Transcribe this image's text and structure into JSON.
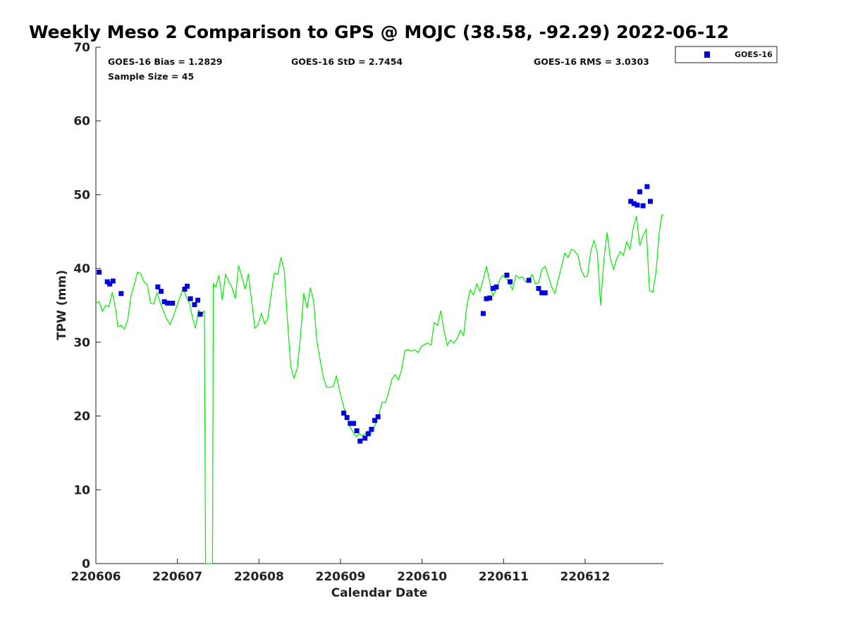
{
  "chart_data": {
    "type": "scatter",
    "title": "Weekly Meso 2 Comparison to GPS @ MOJC (38.58, -92.29) 2022-06-12",
    "xlabel": "Calendar Date",
    "ylabel": "TPW (mm)",
    "x_tick_labels": [
      "220606",
      "220607",
      "220608",
      "220609",
      "220610",
      "220611",
      "220612"
    ],
    "xlim": [
      0,
      6.96
    ],
    "ylim": [
      0,
      70
    ],
    "y_ticks": [
      0,
      10,
      20,
      30,
      40,
      50,
      60,
      70
    ],
    "grid": false,
    "legend_position": "top-right",
    "stats": {
      "bias": "GOES-16 Bias = 1.2829",
      "std": "GOES-16 StD = 2.7454",
      "rms": "GOES-16 RMS = 3.0303",
      "sample": "Sample Size = 45"
    },
    "series": [
      {
        "name": "GOES-16",
        "kind": "scatter",
        "color": "#0000dd",
        "points": [
          [
            0.04,
            39.5
          ],
          [
            0.14,
            38.2
          ],
          [
            0.17,
            37.9
          ],
          [
            0.21,
            38.3
          ],
          [
            0.31,
            36.6
          ],
          [
            0.76,
            37.5
          ],
          [
            0.8,
            36.9
          ],
          [
            0.84,
            35.5
          ],
          [
            0.88,
            35.3
          ],
          [
            0.94,
            35.3
          ],
          [
            1.09,
            37.2
          ],
          [
            1.12,
            37.6
          ],
          [
            1.16,
            35.9
          ],
          [
            1.21,
            35.1
          ],
          [
            1.25,
            35.7
          ],
          [
            1.28,
            33.8
          ],
          [
            3.04,
            20.4
          ],
          [
            3.08,
            19.8
          ],
          [
            3.12,
            19.0
          ],
          [
            3.16,
            19.0
          ],
          [
            3.2,
            18.0
          ],
          [
            3.24,
            16.6
          ],
          [
            3.3,
            17.0
          ],
          [
            3.34,
            17.6
          ],
          [
            3.38,
            18.2
          ],
          [
            3.42,
            19.4
          ],
          [
            3.46,
            19.9
          ],
          [
            4.75,
            33.9
          ],
          [
            4.79,
            35.9
          ],
          [
            4.83,
            36.0
          ],
          [
            4.87,
            37.3
          ],
          [
            4.91,
            37.5
          ],
          [
            5.04,
            39.1
          ],
          [
            5.08,
            38.2
          ],
          [
            5.31,
            38.4
          ],
          [
            5.43,
            37.3
          ],
          [
            5.47,
            36.7
          ],
          [
            5.51,
            36.7
          ],
          [
            6.56,
            49.1
          ],
          [
            6.6,
            48.8
          ],
          [
            6.64,
            48.6
          ],
          [
            6.67,
            50.4
          ],
          [
            6.71,
            48.5
          ],
          [
            6.76,
            51.1
          ],
          [
            6.8,
            49.1
          ]
        ]
      },
      {
        "kind": "line",
        "color": "#00ee00",
        "points": [
          [
            0.0,
            35.3
          ],
          [
            0.04,
            35.5
          ],
          [
            0.08,
            34.2
          ],
          [
            0.12,
            35.0
          ],
          [
            0.16,
            34.8
          ],
          [
            0.2,
            36.8
          ],
          [
            0.24,
            34.6
          ],
          [
            0.27,
            32.1
          ],
          [
            0.31,
            32.3
          ],
          [
            0.35,
            31.8
          ],
          [
            0.39,
            33.0
          ],
          [
            0.43,
            36.2
          ],
          [
            0.47,
            37.8
          ],
          [
            0.51,
            39.5
          ],
          [
            0.55,
            39.3
          ],
          [
            0.59,
            38.2
          ],
          [
            0.63,
            37.8
          ],
          [
            0.67,
            35.3
          ],
          [
            0.71,
            35.2
          ],
          [
            0.75,
            36.7
          ],
          [
            0.79,
            35.3
          ],
          [
            0.83,
            34.2
          ],
          [
            0.87,
            33.1
          ],
          [
            0.91,
            32.4
          ],
          [
            0.95,
            33.5
          ],
          [
            0.99,
            34.8
          ],
          [
            1.03,
            36.1
          ],
          [
            1.07,
            37.3
          ],
          [
            1.11,
            36.1
          ],
          [
            1.15,
            35.2
          ],
          [
            1.19,
            33.1
          ],
          [
            1.22,
            31.9
          ],
          [
            1.26,
            34.4
          ],
          [
            1.3,
            33.7
          ],
          [
            1.33,
            34.3
          ],
          [
            1.345,
            0.0
          ],
          [
            1.4,
            0.0
          ],
          [
            1.43,
            0.0
          ],
          [
            1.44,
            37.9
          ],
          [
            1.47,
            37.5
          ],
          [
            1.51,
            39.1
          ],
          [
            1.55,
            35.7
          ],
          [
            1.59,
            39.2
          ],
          [
            1.63,
            38.2
          ],
          [
            1.67,
            37.4
          ],
          [
            1.71,
            35.9
          ],
          [
            1.75,
            40.4
          ],
          [
            1.79,
            38.9
          ],
          [
            1.83,
            37.2
          ],
          [
            1.87,
            39.3
          ],
          [
            1.91,
            35.6
          ],
          [
            1.95,
            31.9
          ],
          [
            1.99,
            32.4
          ],
          [
            2.03,
            33.9
          ],
          [
            2.07,
            32.5
          ],
          [
            2.11,
            33.2
          ],
          [
            2.15,
            36.6
          ],
          [
            2.19,
            39.4
          ],
          [
            2.23,
            39.2
          ],
          [
            2.27,
            41.5
          ],
          [
            2.31,
            39.8
          ],
          [
            2.35,
            32.9
          ],
          [
            2.39,
            26.7
          ],
          [
            2.43,
            25.1
          ],
          [
            2.47,
            26.5
          ],
          [
            2.51,
            30.8
          ],
          [
            2.55,
            36.7
          ],
          [
            2.59,
            34.6
          ],
          [
            2.63,
            37.4
          ],
          [
            2.67,
            35.6
          ],
          [
            2.71,
            30.2
          ],
          [
            2.75,
            27.6
          ],
          [
            2.79,
            25.2
          ],
          [
            2.83,
            23.9
          ],
          [
            2.87,
            23.9
          ],
          [
            2.91,
            24.0
          ],
          [
            2.95,
            25.4
          ],
          [
            2.99,
            23.4
          ],
          [
            3.03,
            21.6
          ],
          [
            3.07,
            20.0
          ],
          [
            3.11,
            18.7
          ],
          [
            3.15,
            17.9
          ],
          [
            3.19,
            17.2
          ],
          [
            3.23,
            17.6
          ],
          [
            3.27,
            17.3
          ],
          [
            3.31,
            17.7
          ],
          [
            3.35,
            17.3
          ],
          [
            3.39,
            17.8
          ],
          [
            3.43,
            19.0
          ],
          [
            3.47,
            20.1
          ],
          [
            3.51,
            21.9
          ],
          [
            3.55,
            21.8
          ],
          [
            3.59,
            23.2
          ],
          [
            3.63,
            25.0
          ],
          [
            3.67,
            25.6
          ],
          [
            3.71,
            24.9
          ],
          [
            3.75,
            26.3
          ],
          [
            3.79,
            28.9
          ],
          [
            3.83,
            29.0
          ],
          [
            3.87,
            28.8
          ],
          [
            3.91,
            29.0
          ],
          [
            3.95,
            28.6
          ],
          [
            3.99,
            29.4
          ],
          [
            4.03,
            29.7
          ],
          [
            4.07,
            29.9
          ],
          [
            4.11,
            29.6
          ],
          [
            4.15,
            32.7
          ],
          [
            4.19,
            32.3
          ],
          [
            4.23,
            34.3
          ],
          [
            4.27,
            31.5
          ],
          [
            4.31,
            29.6
          ],
          [
            4.35,
            30.3
          ],
          [
            4.39,
            29.9
          ],
          [
            4.43,
            30.5
          ],
          [
            4.47,
            31.6
          ],
          [
            4.51,
            30.9
          ],
          [
            4.55,
            35.0
          ],
          [
            4.59,
            37.1
          ],
          [
            4.63,
            36.4
          ],
          [
            4.67,
            37.9
          ],
          [
            4.71,
            36.9
          ],
          [
            4.75,
            38.5
          ],
          [
            4.79,
            40.3
          ],
          [
            4.83,
            38.2
          ],
          [
            4.87,
            36.3
          ],
          [
            4.91,
            37.1
          ],
          [
            4.95,
            38.4
          ],
          [
            4.99,
            39.1
          ],
          [
            5.03,
            38.7
          ],
          [
            5.07,
            38.1
          ],
          [
            5.11,
            37.1
          ],
          [
            5.15,
            39.1
          ],
          [
            5.19,
            38.7
          ],
          [
            5.23,
            38.9
          ],
          [
            5.27,
            38.2
          ],
          [
            5.31,
            38.4
          ],
          [
            5.35,
            39.2
          ],
          [
            5.39,
            37.9
          ],
          [
            5.43,
            38.1
          ],
          [
            5.47,
            39.9
          ],
          [
            5.51,
            40.3
          ],
          [
            5.55,
            38.9
          ],
          [
            5.59,
            37.5
          ],
          [
            5.63,
            36.6
          ],
          [
            5.67,
            38.5
          ],
          [
            5.71,
            40.2
          ],
          [
            5.75,
            42.1
          ],
          [
            5.79,
            41.5
          ],
          [
            5.83,
            42.6
          ],
          [
            5.87,
            42.4
          ],
          [
            5.91,
            41.8
          ],
          [
            5.95,
            39.9
          ],
          [
            5.99,
            38.9
          ],
          [
            6.03,
            39.0
          ],
          [
            6.07,
            42.4
          ],
          [
            6.11,
            43.8
          ],
          [
            6.15,
            42.1
          ],
          [
            6.19,
            35.0
          ],
          [
            6.23,
            41.2
          ],
          [
            6.27,
            44.9
          ],
          [
            6.31,
            41.3
          ],
          [
            6.35,
            39.9
          ],
          [
            6.39,
            41.4
          ],
          [
            6.43,
            42.3
          ],
          [
            6.47,
            41.8
          ],
          [
            6.51,
            43.6
          ],
          [
            6.55,
            42.6
          ],
          [
            6.59,
            45.5
          ],
          [
            6.63,
            47.1
          ],
          [
            6.67,
            43.1
          ],
          [
            6.71,
            44.5
          ],
          [
            6.75,
            45.3
          ],
          [
            6.79,
            37.0
          ],
          [
            6.83,
            36.8
          ],
          [
            6.87,
            39.6
          ],
          [
            6.91,
            44.9
          ],
          [
            6.94,
            47.2
          ],
          [
            6.96,
            47.3
          ]
        ]
      }
    ]
  }
}
